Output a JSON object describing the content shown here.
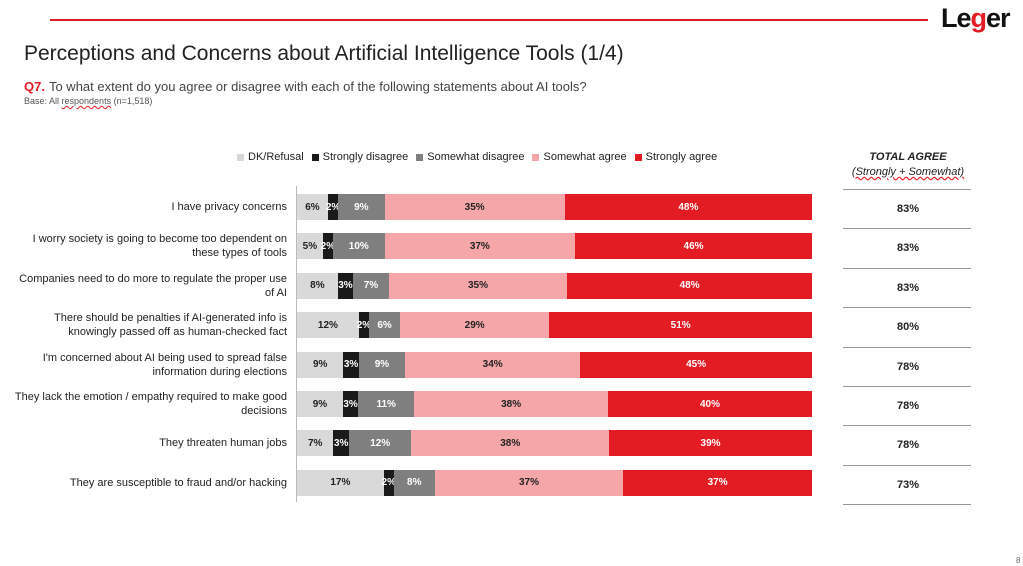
{
  "header": {
    "logo_part1": "Le",
    "logo_part2": "g",
    "logo_part3": "er",
    "title": "Perceptions and Concerns about Artificial Intelligence Tools (1/4)",
    "question_number": "Q7.",
    "question_text": "To what extent do you agree or disagree with each of the following statements about AI tools?",
    "base_prefix": "Base: All ",
    "base_underlined": "respondents",
    "base_suffix": " (n=1,518)"
  },
  "total_column": {
    "header_line1": "TOTAL AGREE",
    "header_line2": "(Strongly + Somewhat)"
  },
  "page_number": "8",
  "chart_data": {
    "type": "bar",
    "orientation": "horizontal",
    "stacked": true,
    "title": "Perceptions and Concerns about Artificial Intelligence Tools (1/4)",
    "legend_position": "top",
    "categories": [
      "I have privacy concerns",
      "I worry society is going to become too dependent on these types of tools",
      "Companies need to do more to regulate the proper use of AI",
      "There should be penalties if AI-generated info is knowingly passed off as human-checked fact",
      "I'm concerned about AI being used to spread false information during elections",
      "They lack the emotion / empathy required to make good decisions",
      "They threaten human jobs",
      "They are susceptible to fraud and/or hacking"
    ],
    "series": [
      {
        "name": "DK/Refusal",
        "color": "#d9d9d9",
        "label_color": "#222222",
        "values": [
          6,
          5,
          8,
          12,
          9,
          9,
          7,
          17
        ],
        "labels": [
          "6%",
          "5%",
          "8%",
          "12%",
          "9%",
          "9%",
          "7%",
          "17%"
        ]
      },
      {
        "name": "Strongly disagree",
        "color": "#1a1a1a",
        "label_color": "#ffffff",
        "values": [
          2,
          2,
          3,
          2,
          3,
          3,
          3,
          2
        ],
        "labels": [
          "2%",
          "2%",
          "3%",
          "2%",
          "3%",
          "3%",
          "3%",
          "2%"
        ]
      },
      {
        "name": "Somewhat disagree",
        "color": "#7f7f7f",
        "label_color": "#ffffff",
        "values": [
          9,
          10,
          7,
          6,
          9,
          11,
          12,
          8
        ],
        "labels": [
          "9%",
          "10%",
          "7%",
          "6%",
          "9%",
          "11%",
          "12%",
          "8%"
        ]
      },
      {
        "name": "Somewhat agree",
        "color": "#f4a6a8",
        "label_color": "#222222",
        "values": [
          35,
          37,
          35,
          29,
          34,
          38,
          38,
          37
        ],
        "labels": [
          "35%",
          "37%",
          "35%",
          "29%",
          "34%",
          "38%",
          "38%",
          "37%"
        ]
      },
      {
        "name": "Strongly agree",
        "color": "#e31b23",
        "label_color": "#ffffff",
        "values": [
          48,
          46,
          48,
          51,
          45,
          40,
          39,
          37
        ],
        "labels": [
          "48%",
          "46%",
          "48%",
          "51%",
          "45%",
          "40%",
          "39%",
          "37%"
        ]
      }
    ],
    "total_agree": [
      "83%",
      "83%",
      "83%",
      "80%",
      "78%",
      "78%",
      "78%",
      "73%"
    ]
  }
}
